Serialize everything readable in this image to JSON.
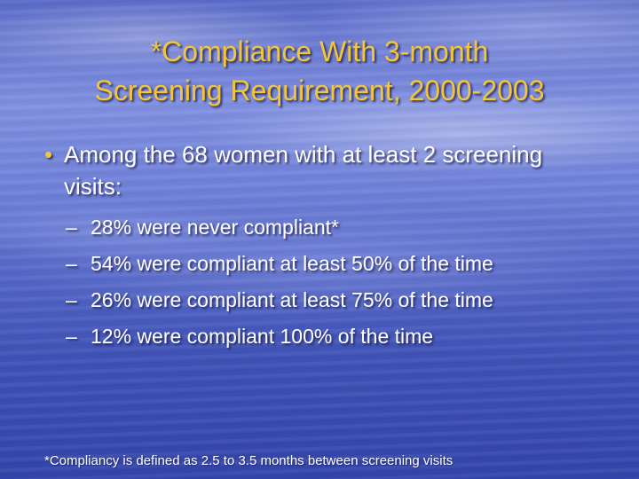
{
  "title": {
    "line1": "*Compliance With 3-month",
    "line2": "Screening Requirement, 2000-2003"
  },
  "bullet": {
    "marker": "•",
    "text": "Among the 68 women with at least 2 screening visits:"
  },
  "sub_bullets": [
    {
      "marker": "–",
      "text": "28% were never compliant*"
    },
    {
      "marker": "–",
      "text": "54% were compliant at least 50% of the time"
    },
    {
      "marker": "–",
      "text": "26% were compliant at least 75% of the time"
    },
    {
      "marker": "–",
      "text": "12% were compliant 100% of the time"
    }
  ],
  "footnote": "*Compliancy is defined as 2.5 to 3.5 months between screening visits",
  "colors": {
    "title": "#f3c63a",
    "body_text": "#ffffff",
    "background": "#5365c6"
  }
}
